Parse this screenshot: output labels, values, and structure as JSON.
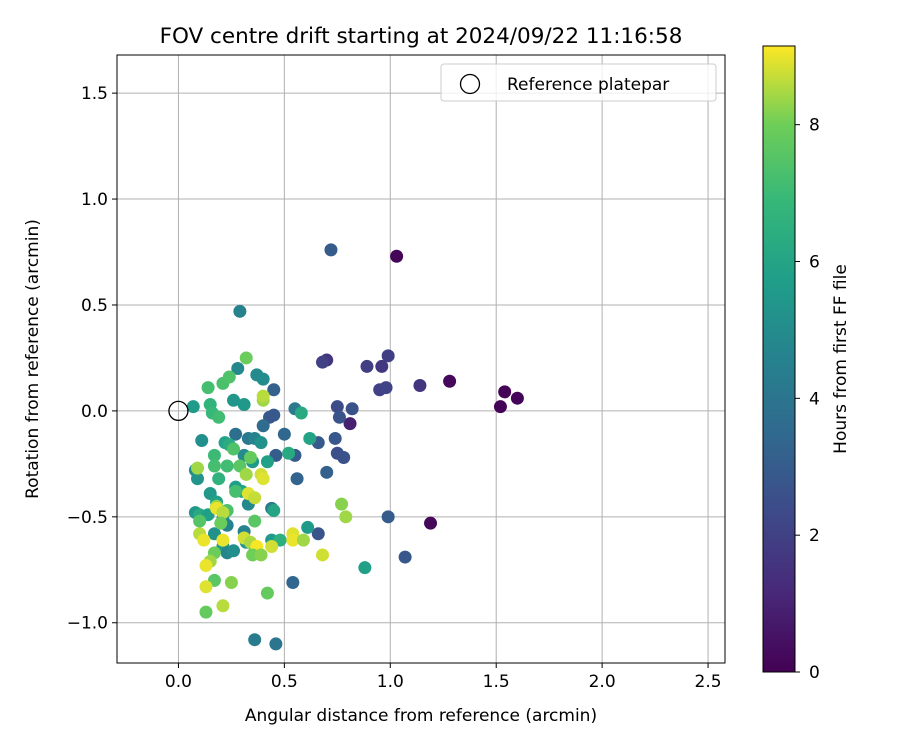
{
  "chart_data": {
    "type": "scatter",
    "title": "FOV centre drift starting at 2024/09/22 11:16:58",
    "xlabel": "Angular distance from reference (arcmin)",
    "ylabel": "Rotation from reference (arcmin)",
    "xlim": [
      -0.29,
      2.58
    ],
    "ylim": [
      -1.19,
      1.68
    ],
    "xticks": [
      0.0,
      0.5,
      1.0,
      1.5,
      2.0,
      2.5
    ],
    "xtick_labels": [
      "0.0",
      "0.5",
      "1.0",
      "1.5",
      "2.0",
      "2.5"
    ],
    "yticks": [
      -1.0,
      -0.5,
      0.0,
      0.5,
      1.0,
      1.5
    ],
    "ytick_labels": [
      "−1.0",
      "−0.5",
      "0.0",
      "0.5",
      "1.0",
      "1.5"
    ],
    "grid": true,
    "legend": {
      "location": "top-right",
      "entries": [
        "Reference platepar"
      ]
    },
    "reference_point": {
      "x": 0.0,
      "y": 0.0,
      "label": "Reference platepar"
    },
    "colorbar": {
      "label": "Hours from first FF file",
      "colormap": "viridis",
      "range": [
        0,
        9.15
      ],
      "ticks": [
        0,
        2,
        4,
        6,
        8
      ],
      "tick_labels": [
        "0",
        "2",
        "4",
        "6",
        "8"
      ]
    },
    "points": [
      {
        "x": 1.03,
        "y": 0.73,
        "t": 0.1
      },
      {
        "x": 1.28,
        "y": 0.14,
        "t": 0.2
      },
      {
        "x": 1.54,
        "y": 0.09,
        "t": 0.15
      },
      {
        "x": 1.52,
        "y": 0.02,
        "t": 0.1
      },
      {
        "x": 1.6,
        "y": 0.06,
        "t": 0.1
      },
      {
        "x": 1.19,
        "y": -0.53,
        "t": 0.2
      },
      {
        "x": 0.81,
        "y": -0.06,
        "t": 0.9
      },
      {
        "x": 1.14,
        "y": 0.12,
        "t": 1.6
      },
      {
        "x": 0.99,
        "y": 0.26,
        "t": 1.9
      },
      {
        "x": 0.96,
        "y": 0.21,
        "t": 1.7
      },
      {
        "x": 0.89,
        "y": 0.21,
        "t": 1.9
      },
      {
        "x": 0.95,
        "y": 0.1,
        "t": 2.0
      },
      {
        "x": 0.98,
        "y": 0.11,
        "t": 2.1
      },
      {
        "x": 0.7,
        "y": 0.24,
        "t": 1.6
      },
      {
        "x": 0.68,
        "y": 0.23,
        "t": 2.0
      },
      {
        "x": 0.72,
        "y": 0.76,
        "t": 3.0
      },
      {
        "x": 0.82,
        "y": 0.01,
        "t": 2.6
      },
      {
        "x": 0.75,
        "y": 0.02,
        "t": 2.4
      },
      {
        "x": 0.76,
        "y": -0.03,
        "t": 2.7
      },
      {
        "x": 0.74,
        "y": -0.13,
        "t": 2.8
      },
      {
        "x": 0.75,
        "y": -0.2,
        "t": 2.5
      },
      {
        "x": 0.78,
        "y": -0.22,
        "t": 2.6
      },
      {
        "x": 0.66,
        "y": -0.15,
        "t": 2.9
      },
      {
        "x": 0.7,
        "y": -0.29,
        "t": 3.2
      },
      {
        "x": 0.99,
        "y": -0.5,
        "t": 3.0
      },
      {
        "x": 1.07,
        "y": -0.69,
        "t": 2.8
      },
      {
        "x": 0.66,
        "y": -0.58,
        "t": 2.7
      },
      {
        "x": 0.54,
        "y": -0.81,
        "t": 3.4
      },
      {
        "x": 0.55,
        "y": -0.21,
        "t": 3.0
      },
      {
        "x": 0.56,
        "y": -0.32,
        "t": 3.3
      },
      {
        "x": 0.5,
        "y": -0.11,
        "t": 3.4
      },
      {
        "x": 0.46,
        "y": -0.21,
        "t": 3.0
      },
      {
        "x": 0.45,
        "y": -0.02,
        "t": 2.9
      },
      {
        "x": 0.43,
        "y": -0.03,
        "t": 2.8
      },
      {
        "x": 0.45,
        "y": 0.1,
        "t": 3.2
      },
      {
        "x": 0.4,
        "y": -0.07,
        "t": 3.6
      },
      {
        "x": 0.55,
        "y": 0.01,
        "t": 4.2
      },
      {
        "x": 0.36,
        "y": -1.08,
        "t": 4.3
      },
      {
        "x": 0.46,
        "y": -1.1,
        "t": 4.0
      },
      {
        "x": 0.29,
        "y": 0.47,
        "t": 4.6
      },
      {
        "x": 0.28,
        "y": 0.2,
        "t": 4.8
      },
      {
        "x": 0.37,
        "y": 0.17,
        "t": 4.9
      },
      {
        "x": 0.4,
        "y": 0.15,
        "t": 5.0
      },
      {
        "x": 0.27,
        "y": -0.11,
        "t": 3.8
      },
      {
        "x": 0.33,
        "y": -0.13,
        "t": 4.2
      },
      {
        "x": 0.36,
        "y": -0.13,
        "t": 4.6
      },
      {
        "x": 0.39,
        "y": -0.15,
        "t": 5.2
      },
      {
        "x": 0.31,
        "y": -0.21,
        "t": 4.9
      },
      {
        "x": 0.35,
        "y": -0.24,
        "t": 5.6
      },
      {
        "x": 0.42,
        "y": -0.24,
        "t": 5.8
      },
      {
        "x": 0.44,
        "y": -0.46,
        "t": 4.2
      },
      {
        "x": 0.45,
        "y": -0.47,
        "t": 6.0
      },
      {
        "x": 0.31,
        "y": -0.57,
        "t": 4.6
      },
      {
        "x": 0.33,
        "y": -0.44,
        "t": 4.8
      },
      {
        "x": 0.21,
        "y": -0.51,
        "t": 5.0
      },
      {
        "x": 0.23,
        "y": -0.54,
        "t": 4.6
      },
      {
        "x": 0.27,
        "y": -0.36,
        "t": 5.7
      },
      {
        "x": 0.3,
        "y": -0.38,
        "t": 6.0
      },
      {
        "x": 0.22,
        "y": -0.15,
        "t": 5.9
      },
      {
        "x": 0.24,
        "y": -0.16,
        "t": 6.3
      },
      {
        "x": 0.11,
        "y": -0.14,
        "t": 5.1
      },
      {
        "x": 0.08,
        "y": -0.28,
        "t": 5.0
      },
      {
        "x": 0.09,
        "y": -0.32,
        "t": 5.3
      },
      {
        "x": 0.15,
        "y": -0.39,
        "t": 5.5
      },
      {
        "x": 0.18,
        "y": -0.43,
        "t": 5.8
      },
      {
        "x": 0.08,
        "y": -0.48,
        "t": 5.4
      },
      {
        "x": 0.1,
        "y": -0.49,
        "t": 6.2
      },
      {
        "x": 0.14,
        "y": -0.49,
        "t": 5.8
      },
      {
        "x": 0.17,
        "y": -0.58,
        "t": 5.2
      },
      {
        "x": 0.21,
        "y": -0.64,
        "t": 5.6
      },
      {
        "x": 0.23,
        "y": -0.67,
        "t": 4.7
      },
      {
        "x": 0.26,
        "y": -0.66,
        "t": 5.1
      },
      {
        "x": 0.32,
        "y": -0.62,
        "t": 5.3
      },
      {
        "x": 0.36,
        "y": -0.64,
        "t": 5.2
      },
      {
        "x": 0.44,
        "y": -0.61,
        "t": 5.6
      },
      {
        "x": 0.48,
        "y": -0.61,
        "t": 6.5
      },
      {
        "x": 0.07,
        "y": 0.02,
        "t": 5.6
      },
      {
        "x": 0.15,
        "y": 0.03,
        "t": 6.7
      },
      {
        "x": 0.16,
        "y": -0.01,
        "t": 6.9
      },
      {
        "x": 0.19,
        "y": -0.03,
        "t": 7.1
      },
      {
        "x": 0.14,
        "y": 0.11,
        "t": 7.2
      },
      {
        "x": 0.21,
        "y": 0.13,
        "t": 7.3
      },
      {
        "x": 0.24,
        "y": 0.16,
        "t": 7.4
      },
      {
        "x": 0.32,
        "y": 0.25,
        "t": 7.9
      },
      {
        "x": 0.26,
        "y": 0.05,
        "t": 5.4
      },
      {
        "x": 0.31,
        "y": 0.03,
        "t": 5.5
      },
      {
        "x": 0.4,
        "y": 0.05,
        "t": 8.4
      },
      {
        "x": 0.4,
        "y": 0.07,
        "t": 8.6
      },
      {
        "x": 0.58,
        "y": -0.01,
        "t": 6.2
      },
      {
        "x": 0.52,
        "y": -0.2,
        "t": 6.2
      },
      {
        "x": 0.62,
        "y": -0.13,
        "t": 6.0
      },
      {
        "x": 0.61,
        "y": -0.55,
        "t": 5.6
      },
      {
        "x": 0.88,
        "y": -0.74,
        "t": 5.8
      },
      {
        "x": 0.17,
        "y": -0.21,
        "t": 7.0
      },
      {
        "x": 0.17,
        "y": -0.26,
        "t": 7.2
      },
      {
        "x": 0.19,
        "y": -0.32,
        "t": 6.6
      },
      {
        "x": 0.23,
        "y": -0.26,
        "t": 7.1
      },
      {
        "x": 0.26,
        "y": -0.18,
        "t": 7.4
      },
      {
        "x": 0.34,
        "y": -0.22,
        "t": 7.8
      },
      {
        "x": 0.29,
        "y": -0.26,
        "t": 7.6
      },
      {
        "x": 0.32,
        "y": -0.3,
        "t": 8.4
      },
      {
        "x": 0.39,
        "y": -0.3,
        "t": 8.8
      },
      {
        "x": 0.4,
        "y": -0.32,
        "t": 8.9
      },
      {
        "x": 0.33,
        "y": -0.39,
        "t": 8.9
      },
      {
        "x": 0.36,
        "y": -0.41,
        "t": 8.7
      },
      {
        "x": 0.27,
        "y": -0.38,
        "t": 7.2
      },
      {
        "x": 0.36,
        "y": -0.52,
        "t": 7.6
      },
      {
        "x": 0.23,
        "y": -0.47,
        "t": 7.3
      },
      {
        "x": 0.18,
        "y": -0.45,
        "t": 8.3
      },
      {
        "x": 0.18,
        "y": -0.46,
        "t": 9.0
      },
      {
        "x": 0.21,
        "y": -0.48,
        "t": 8.6
      },
      {
        "x": 0.2,
        "y": -0.53,
        "t": 7.9
      },
      {
        "x": 0.09,
        "y": -0.27,
        "t": 8.4
      },
      {
        "x": 0.1,
        "y": -0.52,
        "t": 7.5
      },
      {
        "x": 0.1,
        "y": -0.58,
        "t": 8.6
      },
      {
        "x": 0.12,
        "y": -0.61,
        "t": 9.0
      },
      {
        "x": 0.17,
        "y": -0.67,
        "t": 7.9
      },
      {
        "x": 0.15,
        "y": -0.71,
        "t": 8.4
      },
      {
        "x": 0.13,
        "y": -0.73,
        "t": 9.0
      },
      {
        "x": 0.17,
        "y": -0.8,
        "t": 7.6
      },
      {
        "x": 0.13,
        "y": -0.83,
        "t": 8.9
      },
      {
        "x": 0.13,
        "y": -0.95,
        "t": 7.8
      },
      {
        "x": 0.21,
        "y": -0.92,
        "t": 8.6
      },
      {
        "x": 0.25,
        "y": -0.81,
        "t": 8.2
      },
      {
        "x": 0.42,
        "y": -0.86,
        "t": 7.8
      },
      {
        "x": 0.21,
        "y": -0.61,
        "t": 9.0
      },
      {
        "x": 0.31,
        "y": -0.6,
        "t": 8.8
      },
      {
        "x": 0.34,
        "y": -0.62,
        "t": 8.5
      },
      {
        "x": 0.37,
        "y": -0.64,
        "t": 9.1
      },
      {
        "x": 0.35,
        "y": -0.68,
        "t": 8.0
      },
      {
        "x": 0.39,
        "y": -0.68,
        "t": 8.2
      },
      {
        "x": 0.44,
        "y": -0.64,
        "t": 8.8
      },
      {
        "x": 0.54,
        "y": -0.58,
        "t": 8.9
      },
      {
        "x": 0.54,
        "y": -0.61,
        "t": 9.0
      },
      {
        "x": 0.59,
        "y": -0.61,
        "t": 8.4
      },
      {
        "x": 0.68,
        "y": -0.68,
        "t": 8.8
      },
      {
        "x": 0.77,
        "y": -0.44,
        "t": 8.2
      },
      {
        "x": 0.79,
        "y": -0.5,
        "t": 8.4
      }
    ]
  }
}
